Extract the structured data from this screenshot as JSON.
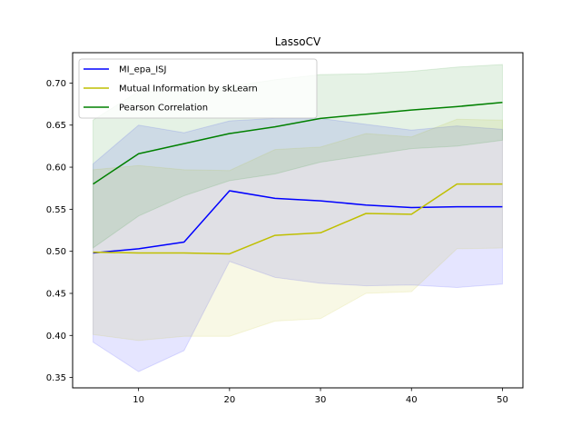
{
  "chart_data": {
    "type": "line",
    "title": "LassoCV",
    "xlabel": "",
    "ylabel": "",
    "xlim": [
      2.75,
      52.25
    ],
    "ylim": [
      0.3377,
      0.7361
    ],
    "xticks": [
      10,
      20,
      30,
      40,
      50
    ],
    "xtick_labels": [
      "10",
      "20",
      "30",
      "40",
      "50"
    ],
    "yticks": [
      0.35,
      0.4,
      0.45,
      0.5,
      0.55,
      0.6,
      0.65,
      0.7
    ],
    "ytick_labels": [
      "0.35",
      "0.40",
      "0.45",
      "0.50",
      "0.55",
      "0.60",
      "0.65",
      "0.70"
    ],
    "grid": false,
    "legend_position": "top-left",
    "x": [
      5,
      10,
      15,
      20,
      25,
      30,
      35,
      40,
      45,
      50
    ],
    "series": [
      {
        "name": "MI_epa_ISJ",
        "color": "#0000ff",
        "band_color": "#0000ff",
        "values": [
          0.498,
          0.503,
          0.511,
          0.572,
          0.563,
          0.56,
          0.555,
          0.552,
          0.553,
          0.553
        ],
        "lower": [
          0.392,
          0.357,
          0.382,
          0.488,
          0.469,
          0.462,
          0.459,
          0.46,
          0.457,
          0.461
        ],
        "upper": [
          0.604,
          0.65,
          0.641,
          0.655,
          0.658,
          0.658,
          0.651,
          0.644,
          0.649,
          0.645
        ]
      },
      {
        "name": "Mutual Information by skLearn",
        "color": "#bfbf00",
        "band_color": "#bfbf00",
        "values": [
          0.499,
          0.498,
          0.498,
          0.497,
          0.519,
          0.522,
          0.545,
          0.544,
          0.58,
          0.58
        ],
        "lower": [
          0.401,
          0.394,
          0.399,
          0.399,
          0.417,
          0.42,
          0.45,
          0.452,
          0.503,
          0.504
        ],
        "upper": [
          0.597,
          0.602,
          0.597,
          0.596,
          0.621,
          0.624,
          0.64,
          0.636,
          0.657,
          0.656
        ]
      },
      {
        "name": "Pearson Correlation",
        "color": "#008000",
        "band_color": "#008000",
        "values": [
          0.58,
          0.616,
          0.628,
          0.64,
          0.648,
          0.658,
          0.663,
          0.668,
          0.672,
          0.677
        ],
        "lower": [
          0.504,
          0.542,
          0.566,
          0.584,
          0.592,
          0.606,
          0.614,
          0.622,
          0.625,
          0.632
        ],
        "upper": [
          0.656,
          0.69,
          0.69,
          0.696,
          0.704,
          0.71,
          0.711,
          0.714,
          0.719,
          0.722
        ]
      }
    ]
  }
}
